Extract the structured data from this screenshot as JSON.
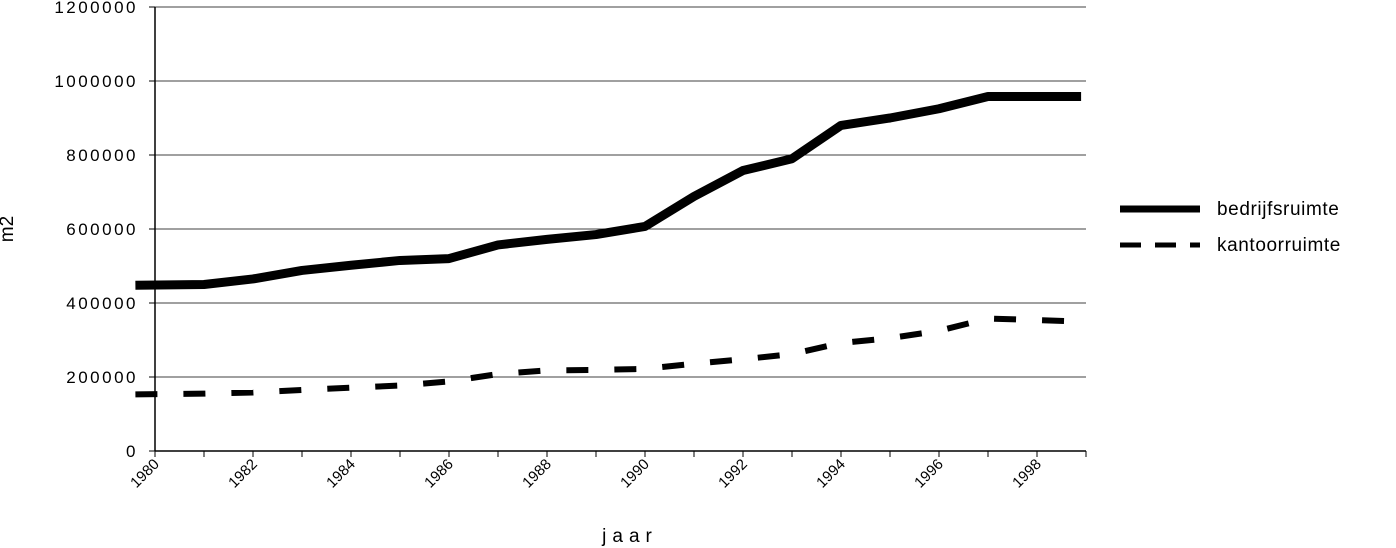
{
  "chart_data": {
    "type": "line",
    "title": "",
    "xlabel": "jaar",
    "ylabel": "m2",
    "x": [
      1980,
      1981,
      1982,
      1983,
      1984,
      1985,
      1986,
      1987,
      1988,
      1989,
      1990,
      1991,
      1992,
      1993,
      1994,
      1995,
      1996,
      1997,
      1998
    ],
    "x_tick_labels": [
      "1980",
      "1982",
      "1984",
      "1986",
      "1988",
      "1990",
      "1992",
      "1994",
      "1996",
      "1998"
    ],
    "y_tick_labels": [
      "0",
      "200000",
      "400000",
      "600000",
      "800000",
      "1000000",
      "1200000"
    ],
    "ylim": [
      0,
      1200000
    ],
    "grid": "horizontal",
    "legend_position": "right",
    "series": [
      {
        "name": "bedrijfsruimte",
        "style": "solid",
        "color": "#000000",
        "values": [
          448000,
          450000,
          465000,
          488000,
          502000,
          515000,
          520000,
          557000,
          572000,
          585000,
          607000,
          688000,
          758000,
          790000,
          880000,
          900000,
          925000,
          958000,
          958000
        ]
      },
      {
        "name": "kantoorruimte",
        "style": "dashed",
        "color": "#000000",
        "values": [
          153000,
          155000,
          158000,
          165000,
          171000,
          177000,
          188000,
          208000,
          218000,
          219000,
          222000,
          236000,
          248000,
          262000,
          292000,
          305000,
          325000,
          358000,
          350000
        ]
      }
    ]
  }
}
